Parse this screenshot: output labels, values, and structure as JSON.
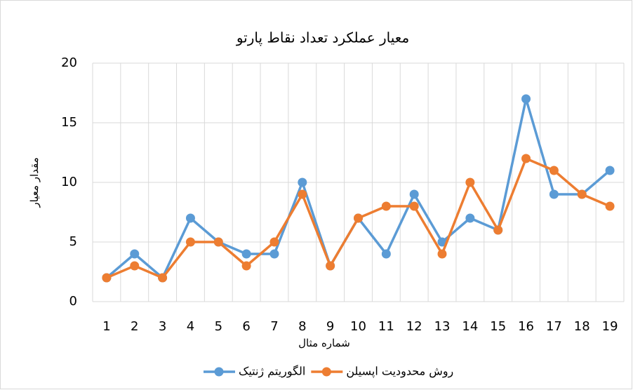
{
  "chart_data": {
    "type": "line",
    "title": "معیار عملکرد تعداد نقاط پارتو",
    "x_label": "شماره مثال",
    "y_label": "مقدار معیار",
    "categories": [
      "1",
      "2",
      "3",
      "4",
      "5",
      "6",
      "7",
      "8",
      "9",
      "10",
      "11",
      "12",
      "13",
      "14",
      "15",
      "16",
      "17",
      "18",
      "19"
    ],
    "series": [
      {
        "name": "الگوریتم ژنتیک",
        "color": "#5b9bd5",
        "values": [
          2,
          4,
          2,
          7,
          5,
          4,
          4,
          10,
          3,
          7,
          4,
          9,
          5,
          7,
          6,
          17,
          9,
          9,
          11
        ]
      },
      {
        "name": "روش محدودیت اپسیلن",
        "color": "#ed7d31",
        "values": [
          2,
          3,
          2,
          5,
          5,
          3,
          5,
          9,
          3,
          7,
          8,
          8,
          4,
          10,
          6,
          12,
          11,
          9,
          8
        ]
      }
    ],
    "ylim": [
      0,
      20
    ],
    "yticks": [
      0,
      5,
      10,
      15,
      20
    ],
    "grid": true,
    "legend": "bottom"
  }
}
